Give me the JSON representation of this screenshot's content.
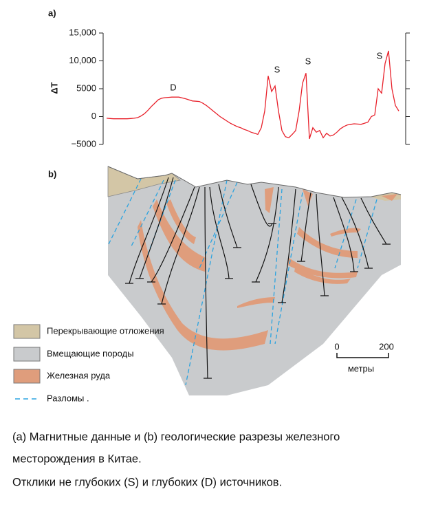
{
  "chart_data": {
    "type": "line",
    "y_label": "ΔT",
    "values": [
      -300,
      -350,
      -400,
      -400,
      -400,
      -400,
      -400,
      -350,
      -300,
      -200,
      100,
      500,
      1100,
      1800,
      2400,
      3000,
      3300,
      3400,
      3450,
      3500,
      3500,
      3500,
      3350,
      3200,
      3000,
      2800,
      2750,
      2700,
      2400,
      2000,
      1500,
      1000,
      500,
      0,
      -400,
      -800,
      -1200,
      -1500,
      -1800,
      -2000,
      -2300,
      -2500,
      -2800,
      -3000,
      -3200,
      -2000,
      1000,
      7300,
      4500,
      5500,
      1000,
      -2500,
      -3600,
      -3800,
      -3200,
      -2500,
      1000,
      6000,
      7800,
      -4000,
      -2000,
      -2800,
      -2500,
      -3800,
      -3000,
      -3500,
      -3300,
      -2800,
      -2200,
      -1800,
      -1500,
      -1400,
      -1300,
      -1350,
      -1400,
      -1200,
      -1000,
      0,
      300,
      5000,
      4200,
      9500,
      11800,
      5000,
      2000,
      1000
    ],
    "color": "#e8202a",
    "ylim": [
      -5000,
      15000
    ],
    "yticks": [
      {
        "value": -5000,
        "label": "−5000"
      },
      0,
      5000,
      {
        "value": 10000,
        "label": "10,000"
      },
      {
        "value": 15000,
        "label": "15,000"
      }
    ],
    "annotations": [
      "D",
      "S",
      "S",
      "S"
    ]
  },
  "panel_labels": [
    "a)",
    "b)"
  ],
  "legend": [
    "Перекрывающие отложения",
    "Вмещающие породы",
    "Железная руда",
    "Разломы ."
  ],
  "scale_bar": {
    "labels": [
      "0",
      "200"
    ],
    "unit": "метры"
  },
  "caption": [
    "(a) Магнитные данные и (b) геологические разрезы железного",
    "месторождения в Китае.",
    "Отклики не глубоких (S) и глубоких (D) источников."
  ]
}
